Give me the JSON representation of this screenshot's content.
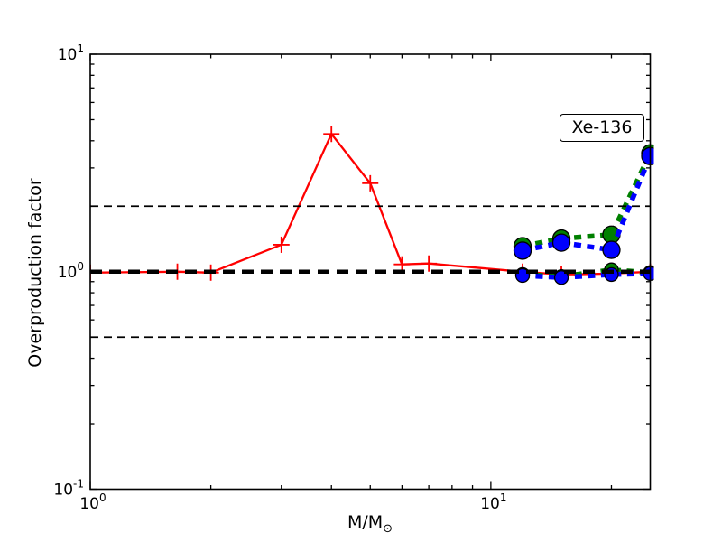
{
  "chart_data": {
    "type": "line",
    "title": "",
    "annotation": "Xe-136",
    "xlabel": "M/M☉",
    "xlabel_base": "M/M",
    "xlabel_sub": "⊙",
    "ylabel": "Overproduction factor",
    "x_scale": "log",
    "y_scale": "log",
    "xlim": [
      1,
      25
    ],
    "ylim": [
      0.1,
      10
    ],
    "grid": false,
    "legend_position": "none",
    "x_major_tick_exponents": [
      0,
      1
    ],
    "y_major_tick_exponents": [
      1,
      0,
      -1
    ],
    "reference_lines": [
      {
        "y": 2,
        "color": "#000000",
        "style": "dashed",
        "weight": "thin"
      },
      {
        "y": 1,
        "color": "#000000",
        "style": "dashed",
        "weight": "thick"
      },
      {
        "y": 0.5,
        "color": "#000000",
        "style": "dashed",
        "weight": "thin"
      }
    ],
    "series": [
      {
        "name": "red-solid-low-mass-models",
        "color": "#ff0000",
        "line": "solid",
        "marker": "plus",
        "marker_radius": 9,
        "x": [
          1,
          1.65,
          2,
          3,
          4,
          5,
          6,
          7,
          12,
          15,
          20,
          25
        ],
        "y": [
          0.99,
          1.0,
          0.99,
          1.33,
          4.3,
          2.55,
          1.08,
          1.09,
          1.0,
          0.97,
          0.98,
          1.0
        ]
      },
      {
        "name": "green-dashed-upper",
        "color": "#008000",
        "line": "dashed",
        "marker": "circle",
        "marker_radius": 9.5,
        "x": [
          12,
          15,
          20,
          25
        ],
        "y": [
          1.31,
          1.42,
          1.48,
          3.5
        ]
      },
      {
        "name": "green-dashed-lower",
        "color": "#008000",
        "line": "dashed",
        "marker": "circle",
        "marker_radius": 7.5,
        "x": [
          12,
          15,
          20,
          25
        ],
        "y": [
          0.97,
          0.95,
          1.02,
          0.99
        ]
      },
      {
        "name": "blue-dashed-upper",
        "color": "#0000ff",
        "line": "dashed",
        "marker": "circle",
        "marker_radius": 9.5,
        "x": [
          12,
          15,
          20,
          25
        ],
        "y": [
          1.25,
          1.36,
          1.26,
          3.4
        ]
      },
      {
        "name": "blue-dashed-lower",
        "color": "#0000ff",
        "line": "dashed",
        "marker": "circle",
        "marker_radius": 7.5,
        "x": [
          12,
          15,
          20,
          25
        ],
        "y": [
          0.96,
          0.94,
          0.97,
          0.98
        ]
      }
    ]
  }
}
